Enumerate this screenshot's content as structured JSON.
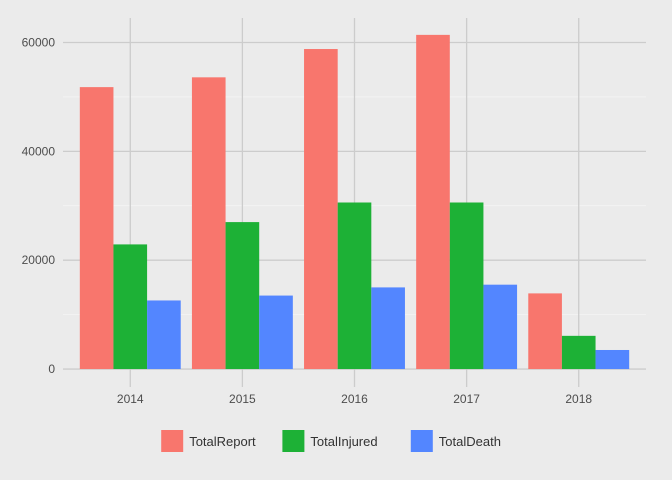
{
  "chart_data": {
    "type": "bar",
    "title": "",
    "xlabel": "",
    "ylabel": "",
    "categories": [
      "2014",
      "2015",
      "2016",
      "2017",
      "2018"
    ],
    "series": [
      {
        "name": "TotalReport",
        "color": "#F8766D",
        "values": [
          51800,
          53600,
          58800,
          61400,
          13900
        ]
      },
      {
        "name": "TotalInjured",
        "color": "#1DB136",
        "values": [
          22900,
          27000,
          30600,
          30600,
          6100
        ]
      },
      {
        "name": "TotalDeath",
        "color": "#5386FF",
        "values": [
          12600,
          13500,
          15000,
          15500,
          3500
        ]
      }
    ],
    "ylim": [
      -3300,
      64500
    ],
    "yticks": [
      0,
      20000,
      40000,
      60000
    ],
    "ytick_labels": [
      "0",
      "20000",
      "40000",
      "60000"
    ],
    "grid": true,
    "legend_position": "bottom"
  }
}
